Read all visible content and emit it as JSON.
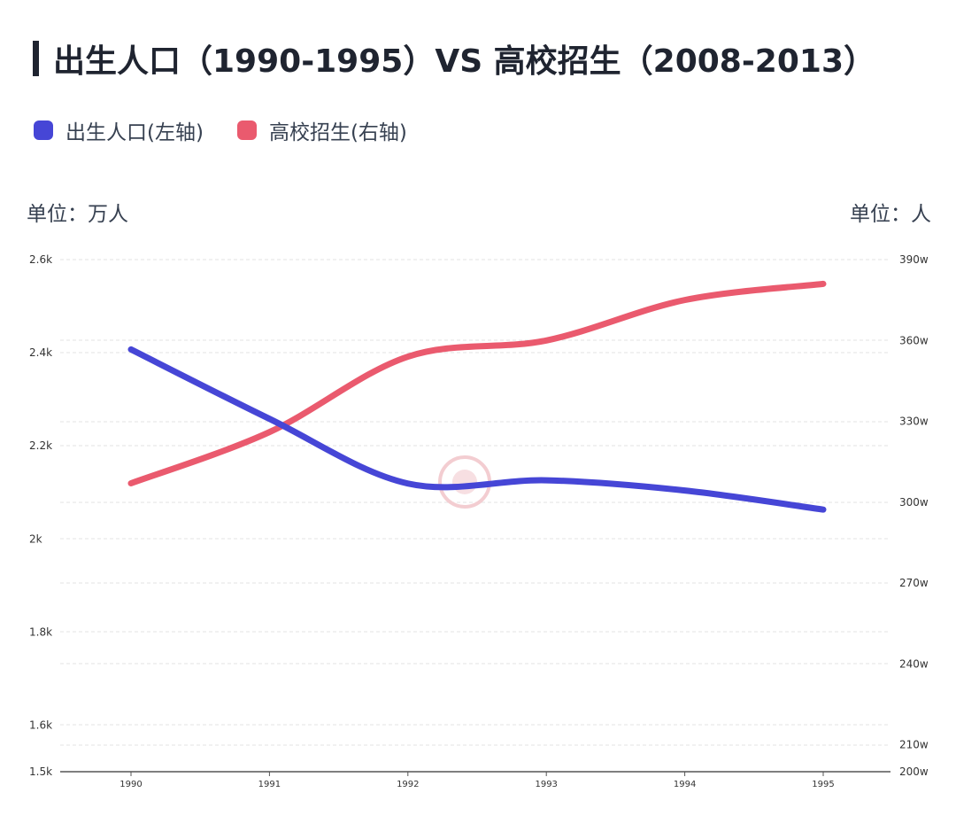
{
  "header": {
    "title": "出生人口（1990-1995）VS 高校招生（2008-2013）"
  },
  "units": {
    "left": "单位：万人",
    "right": "单位：人"
  },
  "colors": {
    "birth": "#4646d6",
    "enroll": "#ea5a6e",
    "grid": "#e3e3e3",
    "axis": "#555555"
  },
  "chart_data": {
    "type": "line",
    "title": "出生人口（1990-1995）VS 高校招生（2008-2013）",
    "x": [
      "1990",
      "1991",
      "1992",
      "1993",
      "1994",
      "1995"
    ],
    "legend_position": "top-left",
    "grid": true,
    "series": [
      {
        "name": "出生人口(左轴)",
        "axis": "left",
        "color": "#4646d6",
        "values": [
          2407,
          2258,
          2119,
          2126,
          2104,
          2063
        ]
      },
      {
        "name": "高校招生(右轴)",
        "axis": "right",
        "color": "#ea5a6e",
        "values": [
          307,
          326,
          354,
          360,
          375,
          381
        ]
      }
    ],
    "y_left": {
      "label": "单位：万人",
      "min": 1500,
      "max": 2600,
      "ticks": [
        1500,
        1600,
        1800,
        2000,
        2200,
        2400,
        2600
      ],
      "tick_labels": [
        "1.5k",
        "1.6k",
        "1.8k",
        "2k",
        "2.2k",
        "2.4k",
        "2.6k"
      ]
    },
    "y_right": {
      "label": "单位：人",
      "min": 200,
      "max": 390,
      "ticks": [
        200,
        210,
        240,
        270,
        300,
        330,
        360,
        390
      ],
      "tick_labels": [
        "200w",
        "210w",
        "240w",
        "270w",
        "300w",
        "330w",
        "360w",
        "390w"
      ]
    }
  }
}
